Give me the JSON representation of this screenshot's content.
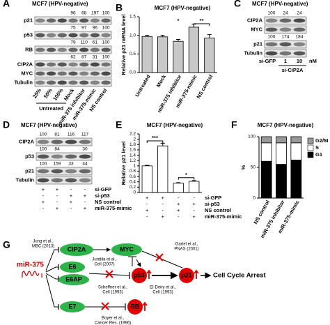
{
  "panels": {
    "A": {
      "letter": "A",
      "title": "MCF7 (HPV-negative)",
      "rows": [
        {
          "label": "p21",
          "numbers": [
            96,
            68,
            197,
            100
          ]
        },
        {
          "label": "p53",
          "numbers": [
            75,
            97,
            96,
            100
          ]
        },
        {
          "label": "RB",
          "numbers": [
            79,
            110,
            61,
            100
          ]
        },
        {
          "label": "CIP2A",
          "numbers": [
            62,
            87,
            31,
            100
          ]
        },
        {
          "label": "MYC"
        },
        {
          "label": "Tubulin"
        }
      ],
      "lanes": [
        "25%",
        "50%",
        "100%",
        "Mock",
        "miR-375 inhibitor",
        "miR-375-mimic",
        "NS control"
      ],
      "group": "Untreated"
    },
    "C": {
      "letter": "C",
      "title": "MCF7 (HPV-negative)",
      "rows": [
        {
          "label": "CIP2A",
          "numbers": [
            100,
            24,
            24
          ]
        },
        {
          "label": "MYC"
        },
        {
          "label": "p21",
          "numbers": [
            100,
            174,
            184
          ]
        },
        {
          "label": "Tubulin"
        }
      ],
      "lanes": [
        "si-GFP",
        "1",
        "10"
      ],
      "unit": "nM",
      "group": "si-CIP2A"
    },
    "D": {
      "letter": "D",
      "title": "MCF7 (HPV-negative)",
      "rows": [
        {
          "label": "CIP2A",
          "numbers": [
            100,
            81,
            116,
            117
          ]
        },
        {
          "label": "p53",
          "numbers": [
            100,
            84,
            null,
            30
          ]
        },
        {
          "label": "p21",
          "numbers": [
            100,
            159,
            33,
            44
          ]
        },
        {
          "label": "Tubulin"
        }
      ],
      "conditions": [
        {
          "label": "si-GFP",
          "signs": [
            "+",
            "+",
            "-",
            "-"
          ]
        },
        {
          "label": "si-p53",
          "signs": [
            "-",
            "-",
            "+",
            "+"
          ]
        },
        {
          "label": "NS control",
          "signs": [
            "+",
            "-",
            "+",
            "-"
          ]
        },
        {
          "label": "miR-375-mimic",
          "signs": [
            "-",
            "+",
            "-",
            "+"
          ]
        }
      ]
    },
    "G": {
      "letter": "G",
      "mir": "miR-375",
      "nodes": {
        "cip2a": "CIP2A",
        "myc": "MYC",
        "e6": "E6",
        "e6ap": "E6AP",
        "p53": "p53",
        "p21": "p21",
        "e7": "E7",
        "rb": "RB"
      },
      "outcome": "Cell Cycle Arrest",
      "citations": {
        "jung": [
          "Jung et al.,",
          "MBC (2013)"
        ],
        "junttila": [
          "Junttila et al.,",
          "Cell (2007)"
        ],
        "gartel": [
          "Gartel et al.,",
          "PNAS (2001)"
        ],
        "scheffner": [
          "Scheffner et al.,",
          "Cell (1993)"
        ],
        "eldeiry": [
          "El-Deiry et al.,",
          "Cell (1993)"
        ],
        "boyer": [
          "Boyer et al.,",
          "Cancer Res. (1996)"
        ]
      }
    }
  },
  "chart_data": [
    {
      "type": "bar",
      "letter": "B",
      "title": "MCF7 (HPV-negative)",
      "y_label": "Relative p21 mRNA level",
      "categories": [
        "Untreated",
        "Mock",
        "miR-375 inhibitor",
        "miR-375-mimic",
        "NS control"
      ],
      "values": [
        0.97,
        0.96,
        0.84,
        1.22,
        0.93
      ],
      "errors": [
        0.03,
        0.04,
        0.05,
        0.08,
        0.09
      ],
      "color": "#c8c8c8",
      "ylim": [
        0,
        1.5
      ],
      "yticks": [
        {
          "value": 0,
          "label": "0.0"
        },
        0.5,
        {
          "value": 1,
          "label": "1.0"
        },
        1.5
      ],
      "annotations": [
        "*",
        "**"
      ]
    },
    {
      "type": "bar",
      "letter": "E",
      "title": "MCF7 (HPV-negative)",
      "y_label": "Relative p21 level",
      "values": [
        1.0,
        1.75,
        0.35,
        0.42
      ],
      "errors": [
        0.02,
        0.1,
        0.02,
        0.03
      ],
      "color": "#ffffff",
      "ylim": [
        0,
        2.2
      ],
      "yticks": [
        0,
        0.2,
        0.4,
        0.6,
        0.8,
        1,
        1.2,
        1.4,
        1.6,
        1.8,
        2,
        2.2
      ],
      "annotations": [
        "***",
        "*"
      ],
      "conditions": [
        {
          "label": "si-GFP",
          "signs": [
            "+",
            "+",
            "-",
            "-"
          ]
        },
        {
          "label": "si-p53",
          "signs": [
            "-",
            "-",
            "+",
            "+"
          ]
        },
        {
          "label": "NS control",
          "signs": [
            "+",
            "-",
            "+",
            "-"
          ]
        },
        {
          "label": "miR-375-mimic",
          "signs": [
            "-",
            "+",
            "-",
            "+"
          ]
        }
      ]
    },
    {
      "type": "stacked_bar",
      "letter": "F",
      "title": "MCF7 (HPV-negative)",
      "y_label": "%",
      "categories": [
        "NS control",
        "miR-375 inhibitor",
        "miR-375-mimic"
      ],
      "series": [
        {
          "name": "G1",
          "color": "#000000",
          "values": [
            60,
            55,
            62
          ]
        },
        {
          "name": "S",
          "color": "#ffffff",
          "values": [
            30,
            35,
            28
          ]
        },
        {
          "name": "G2/M",
          "color": "#999999",
          "values": [
            10,
            10,
            10
          ]
        }
      ],
      "ylim": [
        0,
        100
      ],
      "yticks": [
        0,
        50,
        100
      ]
    }
  ]
}
